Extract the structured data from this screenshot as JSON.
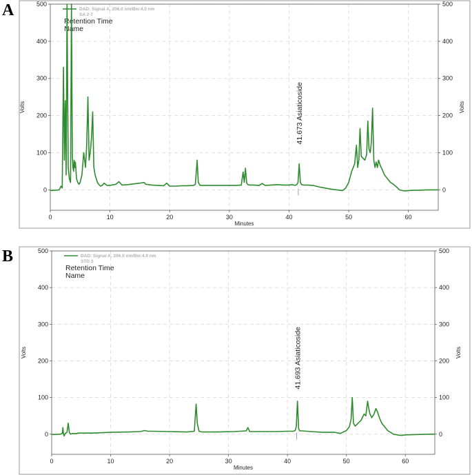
{
  "figure": {
    "panels": [
      {
        "letter": "A",
        "legend_signal": "DAD: Signal A, 206.0 nm/Bw:4.0 nm",
        "legend_sample": "SA 2-7",
        "label_rt": "Retention Time",
        "label_name": "Name",
        "peak_label": "41.673  Asiaticoside"
      },
      {
        "letter": "B",
        "legend_signal": "DAD: Signal A, 206.0 nm/Bw:4.0 nm",
        "legend_sample": "STD 3",
        "label_rt": "Retention Time",
        "label_name": "Name",
        "peak_label": "41.693  Asiaticoside"
      }
    ]
  },
  "chart_data": [
    {
      "type": "line",
      "title": "",
      "xlabel": "Minutes",
      "ylabel": "Volts",
      "y2label": "Volts",
      "xlim": [
        0,
        65
      ],
      "ylim": [
        -55,
        500
      ],
      "xticks": [
        0,
        10,
        20,
        30,
        40,
        50,
        60
      ],
      "yticks": [
        0,
        100,
        200,
        300,
        400,
        500
      ],
      "grid": true,
      "series": [
        {
          "color": "#2e8b2e",
          "x": [
            0,
            1.5,
            1.8,
            2.0,
            2.2,
            2.35,
            2.5,
            2.65,
            2.8,
            3.0,
            3.2,
            3.4,
            3.55,
            3.7,
            3.8,
            3.9,
            4.0,
            4.1,
            4.2,
            4.4,
            4.6,
            4.8,
            5.0,
            5.3,
            5.6,
            5.9,
            6.1,
            6.3,
            6.5,
            6.7,
            6.9,
            7.1,
            7.3,
            7.5,
            7.7,
            7.9,
            8.1,
            8.4,
            8.7,
            9.0,
            9.5,
            10,
            11,
            11.5,
            12,
            13,
            14,
            15,
            15.7,
            16,
            16.5,
            17,
            18,
            19,
            19.5,
            20,
            21,
            22,
            23,
            24,
            24.3,
            24.6,
            24.8,
            25.1,
            25.5,
            27,
            29,
            31,
            32,
            32.3,
            32.5,
            32.7,
            32.9,
            33.1,
            33.4,
            34,
            35,
            35.5,
            36,
            37,
            38,
            39,
            40,
            40.5,
            41,
            41.3,
            41.5,
            41.7,
            41.9,
            42.1,
            42.4,
            43,
            44,
            45,
            46,
            47,
            48,
            49,
            49.5,
            50,
            50.5,
            51,
            51.3,
            51.5,
            51.7,
            51.9,
            52.1,
            52.4,
            52.7,
            53,
            53.2,
            53.4,
            53.6,
            53.8,
            54.0,
            54.2,
            54.4,
            54.6,
            54.8,
            55.0,
            55.3,
            55.6,
            56,
            56.5,
            57,
            57.5,
            58,
            58.5,
            59,
            59.5,
            60,
            61,
            62,
            63,
            64,
            65
          ],
          "y": [
            -2,
            0,
            10,
            5,
            330,
            80,
            240,
            40,
            500,
            60,
            30,
            20,
            500,
            90,
            60,
            50,
            80,
            60,
            75,
            30,
            20,
            15,
            20,
            40,
            100,
            60,
            120,
            250,
            80,
            100,
            140,
            210,
            60,
            40,
            30,
            20,
            15,
            10,
            12,
            18,
            12,
            12,
            15,
            22,
            13,
            14,
            16,
            18,
            20,
            15,
            14,
            13,
            12,
            11,
            18,
            10,
            10,
            11,
            11,
            12,
            15,
            80,
            20,
            12,
            12,
            12,
            12,
            12,
            13,
            48,
            20,
            58,
            18,
            14,
            13,
            13,
            12,
            17,
            12,
            13,
            14,
            13,
            13,
            14,
            12,
            14,
            20,
            70,
            20,
            14,
            13,
            13,
            12,
            8,
            5,
            2,
            0,
            -2,
            5,
            20,
            50,
            70,
            120,
            60,
            80,
            165,
            90,
            85,
            80,
            95,
            185,
            110,
            100,
            130,
            220,
            80,
            60,
            75,
            60,
            80,
            65,
            55,
            40,
            30,
            20,
            15,
            8,
            0,
            -2,
            -3,
            -2,
            -1,
            -1,
            0,
            0,
            0
          ]
        }
      ],
      "annotations": [
        {
          "x": 41.673,
          "text": "41.673  Asiaticoside"
        }
      ]
    },
    {
      "type": "line",
      "title": "",
      "xlabel": "Minutes",
      "ylabel": "Volts",
      "y2label": "Volts",
      "xlim": [
        0,
        65
      ],
      "ylim": [
        -55,
        500
      ],
      "xticks": [
        0,
        10,
        20,
        30,
        40,
        50,
        60
      ],
      "yticks": [
        0,
        100,
        200,
        300,
        400,
        500
      ],
      "grid": true,
      "series": [
        {
          "color": "#2e8b2e",
          "x": [
            0,
            1.5,
            1.8,
            1.9,
            2.0,
            2.1,
            2.3,
            2.6,
            2.8,
            3.0,
            3.2,
            3.5,
            4,
            4.5,
            5,
            7,
            10,
            13,
            15,
            15.8,
            16.3,
            17,
            20,
            23,
            24.2,
            24.5,
            24.7,
            25.0,
            25.5,
            28,
            31,
            33,
            33.3,
            33.6,
            35,
            38,
            40,
            41,
            41.3,
            41.5,
            41.7,
            41.9,
            42.1,
            42.5,
            44,
            46,
            48,
            49,
            49.5,
            50,
            50.5,
            50.8,
            51.0,
            51.2,
            51.5,
            52,
            52.5,
            53,
            53.3,
            53.6,
            53.8,
            54.0,
            54.3,
            54.7,
            55.0,
            55.3,
            55.6,
            56,
            56.5,
            57,
            58,
            59,
            59.5,
            60,
            62,
            64,
            65
          ],
          "y": [
            -1,
            0,
            2,
            18,
            0,
            -5,
            2,
            5,
            30,
            4,
            0,
            2,
            1,
            3,
            3,
            3,
            5,
            6,
            7,
            10,
            8,
            8,
            7,
            6,
            8,
            82,
            30,
            8,
            6,
            6,
            7,
            9,
            18,
            7,
            7,
            7,
            8,
            8,
            10,
            20,
            90,
            15,
            9,
            9,
            7,
            5,
            5,
            2,
            6,
            10,
            20,
            40,
            100,
            30,
            22,
            30,
            38,
            55,
            50,
            90,
            70,
            55,
            45,
            55,
            70,
            60,
            45,
            30,
            20,
            10,
            0,
            -3,
            -3,
            -2,
            -1,
            0,
            0
          ]
        }
      ],
      "annotations": [
        {
          "x": 41.693,
          "text": "41.693  Asiaticoside"
        }
      ]
    }
  ]
}
